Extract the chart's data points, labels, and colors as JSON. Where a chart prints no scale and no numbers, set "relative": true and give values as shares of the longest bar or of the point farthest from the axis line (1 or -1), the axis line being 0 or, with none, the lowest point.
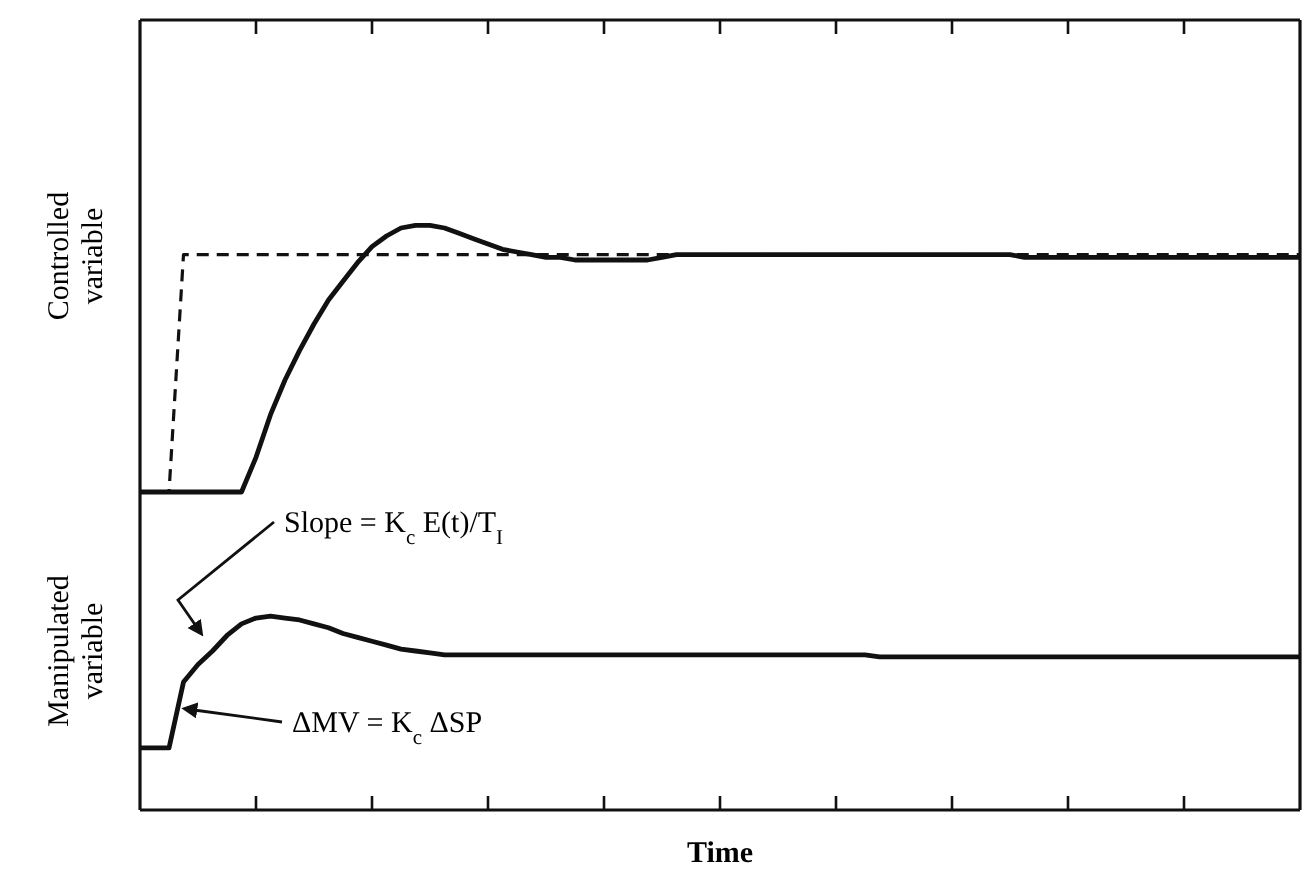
{
  "chart_data": [
    {
      "type": "line",
      "ylabel": "Controlled variable",
      "relative": true,
      "grid": false,
      "marker": "none",
      "categories": [
        null,
        null,
        null,
        null,
        null,
        null,
        null,
        null,
        null,
        null,
        null,
        null,
        null,
        null,
        null,
        null,
        null,
        null,
        null,
        null,
        null,
        null,
        null,
        null,
        null,
        null,
        null,
        null,
        null,
        null,
        null,
        null,
        null,
        null,
        null,
        null,
        null,
        null,
        null,
        null,
        null,
        null,
        null,
        null,
        null,
        null,
        null,
        null,
        null,
        null,
        null,
        null,
        null,
        null,
        null,
        null,
        null,
        null,
        null,
        null,
        null,
        null,
        null,
        null,
        null,
        null,
        null,
        null,
        null,
        null,
        null,
        null,
        null,
        null,
        null,
        null,
        null,
        null,
        null,
        null,
        null
      ],
      "series": [
        {
          "color": "#111111",
          "line_style": "solid",
          "values": [
            0,
            0,
            0,
            0,
            0,
            0,
            0,
            0,
            0.13,
            0.29,
            0.42,
            0.53,
            0.63,
            0.72,
            0.79,
            0.86,
            0.92,
            0.96,
            0.99,
            1,
            1,
            0.99,
            0.97,
            0.95,
            0.93,
            0.91,
            0.9,
            0.89,
            0.88,
            0.88,
            0.87,
            0.87,
            0.87,
            0.87,
            0.87,
            0.87,
            0.88,
            0.89,
            0.89,
            0.89,
            0.89,
            0.89,
            0.89,
            0.89,
            0.89,
            0.89,
            0.89,
            0.89,
            0.89,
            0.89,
            0.89,
            0.89,
            0.89,
            0.89,
            0.89,
            0.89,
            0.89,
            0.89,
            0.89,
            0.89,
            0.89,
            0.88,
            0.88,
            0.88,
            0.88,
            0.88,
            0.88,
            0.88,
            0.88,
            0.88,
            0.88,
            0.88,
            0.88,
            0.88,
            0.88,
            0.88,
            0.88,
            0.88,
            0.88,
            0.88,
            0.88
          ]
        },
        {
          "color": "#111111",
          "line_style": "dashed",
          "values": [
            0,
            0,
            0,
            0.89,
            0.89,
            0.89,
            0.89,
            0.89,
            0.89,
            0.89,
            0.89,
            0.89,
            0.89,
            0.89,
            0.89,
            0.89,
            0.89,
            0.89,
            0.89,
            0.89,
            0.89,
            0.89,
            0.89,
            0.89,
            0.89,
            0.89,
            0.89,
            0.89,
            0.89,
            0.89,
            0.89,
            0.89,
            0.89,
            0.89,
            0.89,
            0.89,
            0.89,
            0.89,
            0.89,
            0.89,
            0.89,
            0.89,
            0.89,
            0.89,
            0.89,
            0.89,
            0.89,
            0.89,
            0.89,
            0.89,
            0.89,
            0.89,
            0.89,
            0.89,
            0.89,
            0.89,
            0.89,
            0.89,
            0.89,
            0.89,
            0.89,
            0.89,
            0.89,
            0.89,
            0.89,
            0.89,
            0.89,
            0.89,
            0.89,
            0.89,
            0.89,
            0.89,
            0.89,
            0.89,
            0.89,
            0.89,
            0.89,
            0.89,
            0.89,
            0.89,
            0.89
          ]
        }
      ]
    },
    {
      "type": "line",
      "ylabel": "Manipulated variable",
      "xlabel": "Time",
      "relative": true,
      "grid": false,
      "marker": "none",
      "categories": [
        null,
        null,
        null,
        null,
        null,
        null,
        null,
        null,
        null,
        null,
        null,
        null,
        null,
        null,
        null,
        null,
        null,
        null,
        null,
        null,
        null,
        null,
        null,
        null,
        null,
        null,
        null,
        null,
        null,
        null,
        null,
        null,
        null,
        null,
        null,
        null,
        null,
        null,
        null,
        null,
        null,
        null,
        null,
        null,
        null,
        null,
        null,
        null,
        null,
        null,
        null,
        null,
        null,
        null,
        null,
        null,
        null,
        null,
        null,
        null,
        null,
        null,
        null,
        null,
        null,
        null,
        null,
        null,
        null,
        null,
        null,
        null,
        null,
        null,
        null,
        null,
        null,
        null,
        null,
        null,
        null
      ],
      "annotations": [
        "Slope = K$_{c}$ E(t)/T$_{I}$",
        "ΔMV = K$_{c}$ ΔSP"
      ],
      "series": [
        {
          "color": "#111111",
          "line_style": "solid",
          "values": [
            0.32,
            0.32,
            0.32,
            0.66,
            0.75,
            0.82,
            0.9,
            0.96,
            0.99,
            1,
            0.99,
            0.98,
            0.96,
            0.94,
            0.91,
            0.89,
            0.87,
            0.85,
            0.83,
            0.82,
            0.81,
            0.8,
            0.8,
            0.8,
            0.8,
            0.8,
            0.8,
            0.8,
            0.8,
            0.8,
            0.8,
            0.8,
            0.8,
            0.8,
            0.8,
            0.8,
            0.8,
            0.8,
            0.8,
            0.8,
            0.8,
            0.8,
            0.8,
            0.8,
            0.8,
            0.8,
            0.8,
            0.8,
            0.8,
            0.8,
            0.8,
            0.79,
            0.79,
            0.79,
            0.79,
            0.79,
            0.79,
            0.79,
            0.79,
            0.79,
            0.79,
            0.79,
            0.79,
            0.79,
            0.79,
            0.79,
            0.79,
            0.79,
            0.79,
            0.79,
            0.79,
            0.79,
            0.79,
            0.79,
            0.79,
            0.79,
            0.79,
            0.79,
            0.79,
            0.79,
            0.79
          ]
        }
      ]
    }
  ]
}
